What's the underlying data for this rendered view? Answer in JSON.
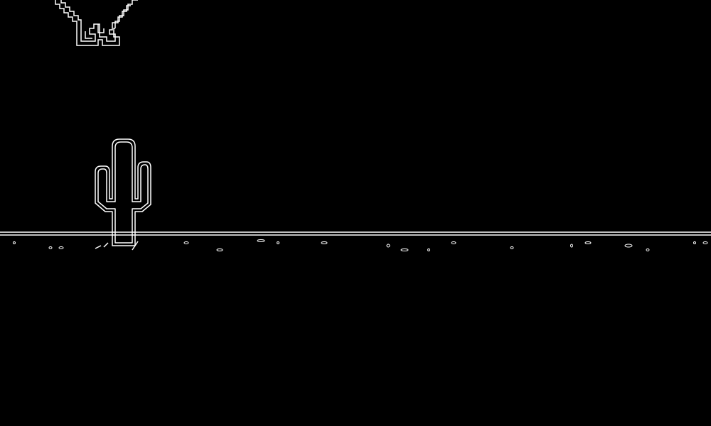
{
  "game": {
    "background_color": "#000000",
    "line_color": "#ffffff",
    "render_style": "edge-outline",
    "sprites": [
      {
        "name": "pterodactyl-bird",
        "state": "wings-down"
      },
      {
        "name": "saguaro-cactus",
        "arms": 2
      }
    ],
    "ground": {
      "type": "double-horizon-line",
      "pebbles": true
    }
  }
}
